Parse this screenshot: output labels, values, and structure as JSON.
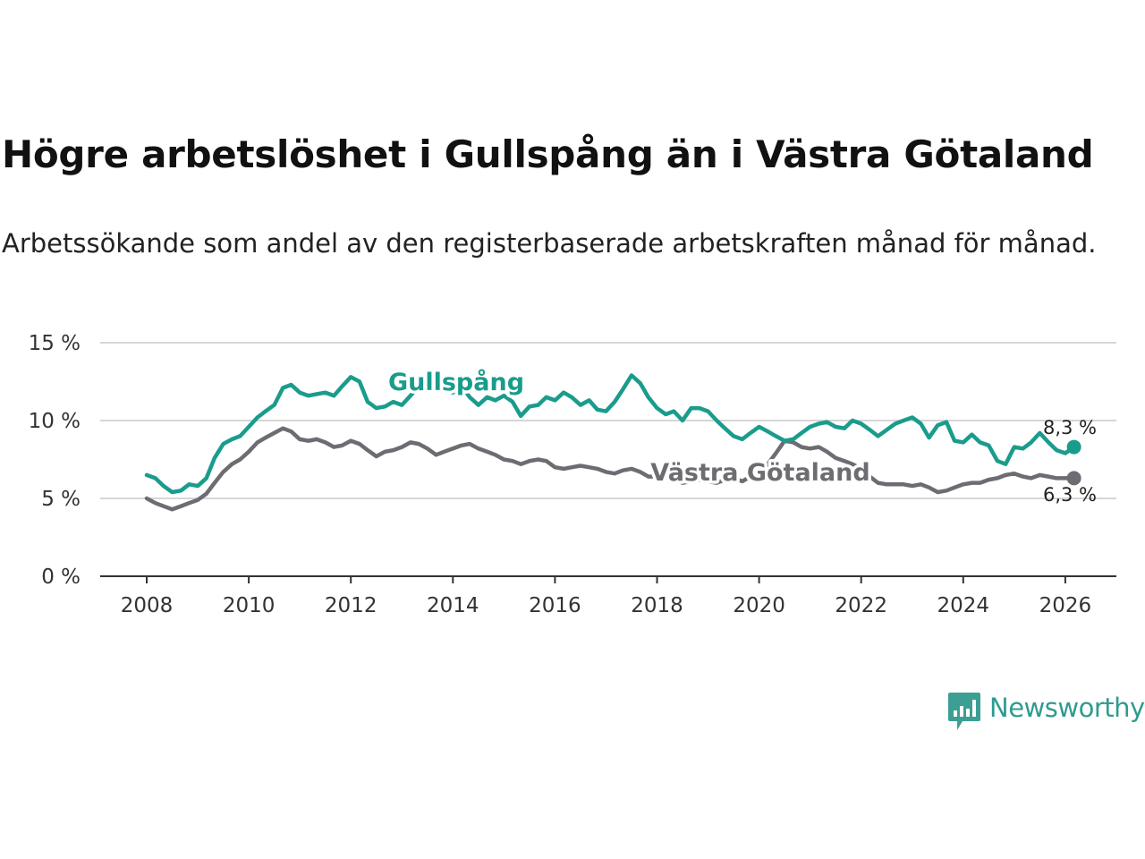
{
  "chart_data": {
    "type": "line",
    "title": "Högre arbetslöshet i Gullspång än i Västra Götaland",
    "subtitle": "Arbetssökande som andel av den registerbaserade arbetskraften månad för månad.",
    "xlabel": "",
    "ylabel": "",
    "xlim": [
      2007.6,
      2027.0
    ],
    "ylim": [
      0,
      15
    ],
    "x_ticks": [
      2008,
      2010,
      2012,
      2014,
      2016,
      2018,
      2020,
      2022,
      2024,
      2026
    ],
    "y_ticks": [
      {
        "value": 0,
        "label": "0 %"
      },
      {
        "value": 5,
        "label": "5 %"
      },
      {
        "value": 10,
        "label": "10 %"
      },
      {
        "value": 15,
        "label": "15 %"
      }
    ],
    "grid": true,
    "series": [
      {
        "name": "Gullspång",
        "label": "Gullspång",
        "color": "#1a9c8c",
        "end_label": "8,3 %",
        "points": [
          [
            2008.0,
            6.5
          ],
          [
            2008.17,
            6.3
          ],
          [
            2008.33,
            5.8
          ],
          [
            2008.5,
            5.4
          ],
          [
            2008.67,
            5.5
          ],
          [
            2008.83,
            5.9
          ],
          [
            2009.0,
            5.8
          ],
          [
            2009.17,
            6.3
          ],
          [
            2009.33,
            7.6
          ],
          [
            2009.5,
            8.5
          ],
          [
            2009.67,
            8.8
          ],
          [
            2009.83,
            9.0
          ],
          [
            2010.0,
            9.6
          ],
          [
            2010.17,
            10.2
          ],
          [
            2010.33,
            10.6
          ],
          [
            2010.5,
            11.0
          ],
          [
            2010.67,
            12.1
          ],
          [
            2010.83,
            12.3
          ],
          [
            2011.0,
            11.8
          ],
          [
            2011.17,
            11.6
          ],
          [
            2011.33,
            11.7
          ],
          [
            2011.5,
            11.8
          ],
          [
            2011.67,
            11.6
          ],
          [
            2011.83,
            12.2
          ],
          [
            2012.0,
            12.8
          ],
          [
            2012.17,
            12.5
          ],
          [
            2012.33,
            11.2
          ],
          [
            2012.5,
            10.8
          ],
          [
            2012.67,
            10.9
          ],
          [
            2012.83,
            11.2
          ],
          [
            2013.0,
            11.0
          ],
          [
            2013.17,
            11.6
          ],
          [
            2013.33,
            12.2
          ],
          [
            2013.5,
            12.0
          ],
          [
            2013.67,
            12.5
          ],
          [
            2013.83,
            12.0
          ],
          [
            2014.0,
            11.8
          ],
          [
            2014.17,
            12.2
          ],
          [
            2014.33,
            11.5
          ],
          [
            2014.5,
            11.0
          ],
          [
            2014.67,
            11.5
          ],
          [
            2014.83,
            11.3
          ],
          [
            2015.0,
            11.6
          ],
          [
            2015.17,
            11.2
          ],
          [
            2015.33,
            10.3
          ],
          [
            2015.5,
            10.9
          ],
          [
            2015.67,
            11.0
          ],
          [
            2015.83,
            11.5
          ],
          [
            2016.0,
            11.3
          ],
          [
            2016.17,
            11.8
          ],
          [
            2016.33,
            11.5
          ],
          [
            2016.5,
            11.0
          ],
          [
            2016.67,
            11.3
          ],
          [
            2016.83,
            10.7
          ],
          [
            2017.0,
            10.6
          ],
          [
            2017.17,
            11.2
          ],
          [
            2017.33,
            12.0
          ],
          [
            2017.5,
            12.9
          ],
          [
            2017.67,
            12.4
          ],
          [
            2017.83,
            11.5
          ],
          [
            2018.0,
            10.8
          ],
          [
            2018.17,
            10.4
          ],
          [
            2018.33,
            10.6
          ],
          [
            2018.5,
            10.0
          ],
          [
            2018.67,
            10.8
          ],
          [
            2018.83,
            10.8
          ],
          [
            2019.0,
            10.6
          ],
          [
            2019.17,
            10.0
          ],
          [
            2019.33,
            9.5
          ],
          [
            2019.5,
            9.0
          ],
          [
            2019.67,
            8.8
          ],
          [
            2019.83,
            9.2
          ],
          [
            2020.0,
            9.6
          ],
          [
            2020.17,
            9.3
          ],
          [
            2020.33,
            9.0
          ],
          [
            2020.5,
            8.7
          ],
          [
            2020.67,
            8.8
          ],
          [
            2020.83,
            9.2
          ],
          [
            2021.0,
            9.6
          ],
          [
            2021.17,
            9.8
          ],
          [
            2021.33,
            9.9
          ],
          [
            2021.5,
            9.6
          ],
          [
            2021.67,
            9.5
          ],
          [
            2021.83,
            10.0
          ],
          [
            2022.0,
            9.8
          ],
          [
            2022.17,
            9.4
          ],
          [
            2022.33,
            9.0
          ],
          [
            2022.5,
            9.4
          ],
          [
            2022.67,
            9.8
          ],
          [
            2022.83,
            10.0
          ],
          [
            2023.0,
            10.2
          ],
          [
            2023.17,
            9.8
          ],
          [
            2023.33,
            8.9
          ],
          [
            2023.5,
            9.7
          ],
          [
            2023.67,
            9.9
          ],
          [
            2023.83,
            8.7
          ],
          [
            2024.0,
            8.6
          ],
          [
            2024.17,
            9.1
          ],
          [
            2024.33,
            8.6
          ],
          [
            2024.5,
            8.4
          ],
          [
            2024.67,
            7.4
          ],
          [
            2024.83,
            7.2
          ],
          [
            2025.0,
            8.3
          ],
          [
            2025.17,
            8.2
          ],
          [
            2025.33,
            8.6
          ],
          [
            2025.5,
            9.2
          ],
          [
            2025.67,
            8.6
          ],
          [
            2025.83,
            8.1
          ],
          [
            2026.0,
            7.9
          ],
          [
            2026.17,
            8.3
          ]
        ]
      },
      {
        "name": "Västra Götaland",
        "label": "Västra Götaland",
        "color": "#6e6c72",
        "end_label": "6,3 %",
        "points": [
          [
            2008.0,
            5.0
          ],
          [
            2008.17,
            4.7
          ],
          [
            2008.33,
            4.5
          ],
          [
            2008.5,
            4.3
          ],
          [
            2008.67,
            4.5
          ],
          [
            2008.83,
            4.7
          ],
          [
            2009.0,
            4.9
          ],
          [
            2009.17,
            5.3
          ],
          [
            2009.33,
            6.0
          ],
          [
            2009.5,
            6.7
          ],
          [
            2009.67,
            7.2
          ],
          [
            2009.83,
            7.5
          ],
          [
            2010.0,
            8.0
          ],
          [
            2010.17,
            8.6
          ],
          [
            2010.33,
            8.9
          ],
          [
            2010.5,
            9.2
          ],
          [
            2010.67,
            9.5
          ],
          [
            2010.83,
            9.3
          ],
          [
            2011.0,
            8.8
          ],
          [
            2011.17,
            8.7
          ],
          [
            2011.33,
            8.8
          ],
          [
            2011.5,
            8.6
          ],
          [
            2011.67,
            8.3
          ],
          [
            2011.83,
            8.4
          ],
          [
            2012.0,
            8.7
          ],
          [
            2012.17,
            8.5
          ],
          [
            2012.33,
            8.1
          ],
          [
            2012.5,
            7.7
          ],
          [
            2012.67,
            8.0
          ],
          [
            2012.83,
            8.1
          ],
          [
            2013.0,
            8.3
          ],
          [
            2013.17,
            8.6
          ],
          [
            2013.33,
            8.5
          ],
          [
            2013.5,
            8.2
          ],
          [
            2013.67,
            7.8
          ],
          [
            2013.83,
            8.0
          ],
          [
            2014.0,
            8.2
          ],
          [
            2014.17,
            8.4
          ],
          [
            2014.33,
            8.5
          ],
          [
            2014.5,
            8.2
          ],
          [
            2014.67,
            8.0
          ],
          [
            2014.83,
            7.8
          ],
          [
            2015.0,
            7.5
          ],
          [
            2015.17,
            7.4
          ],
          [
            2015.33,
            7.2
          ],
          [
            2015.5,
            7.4
          ],
          [
            2015.67,
            7.5
          ],
          [
            2015.83,
            7.4
          ],
          [
            2016.0,
            7.0
          ],
          [
            2016.17,
            6.9
          ],
          [
            2016.33,
            7.0
          ],
          [
            2016.5,
            7.1
          ],
          [
            2016.67,
            7.0
          ],
          [
            2016.83,
            6.9
          ],
          [
            2017.0,
            6.7
          ],
          [
            2017.17,
            6.6
          ],
          [
            2017.33,
            6.8
          ],
          [
            2017.5,
            6.9
          ],
          [
            2017.67,
            6.7
          ],
          [
            2017.83,
            6.4
          ],
          [
            2018.0,
            6.4
          ],
          [
            2018.17,
            6.5
          ],
          [
            2018.33,
            6.3
          ],
          [
            2018.5,
            6.0
          ],
          [
            2018.67,
            6.1
          ],
          [
            2018.83,
            6.2
          ],
          [
            2019.0,
            6.1
          ],
          [
            2019.17,
            6.0
          ],
          [
            2019.33,
            6.2
          ],
          [
            2019.5,
            6.3
          ],
          [
            2019.67,
            6.1
          ],
          [
            2019.83,
            6.4
          ],
          [
            2020.0,
            6.7
          ],
          [
            2020.17,
            7.2
          ],
          [
            2020.33,
            7.9
          ],
          [
            2020.5,
            8.7
          ],
          [
            2020.67,
            8.6
          ],
          [
            2020.83,
            8.3
          ],
          [
            2021.0,
            8.2
          ],
          [
            2021.17,
            8.3
          ],
          [
            2021.33,
            8.0
          ],
          [
            2021.5,
            7.6
          ],
          [
            2021.67,
            7.4
          ],
          [
            2021.83,
            7.2
          ],
          [
            2022.0,
            6.9
          ],
          [
            2022.17,
            6.4
          ],
          [
            2022.33,
            6.0
          ],
          [
            2022.5,
            5.9
          ],
          [
            2022.67,
            5.9
          ],
          [
            2022.83,
            5.9
          ],
          [
            2023.0,
            5.8
          ],
          [
            2023.17,
            5.9
          ],
          [
            2023.33,
            5.7
          ],
          [
            2023.5,
            5.4
          ],
          [
            2023.67,
            5.5
          ],
          [
            2023.83,
            5.7
          ],
          [
            2024.0,
            5.9
          ],
          [
            2024.17,
            6.0
          ],
          [
            2024.33,
            6.0
          ],
          [
            2024.5,
            6.2
          ],
          [
            2024.67,
            6.3
          ],
          [
            2024.83,
            6.5
          ],
          [
            2025.0,
            6.6
          ],
          [
            2025.17,
            6.4
          ],
          [
            2025.33,
            6.3
          ],
          [
            2025.5,
            6.5
          ],
          [
            2025.67,
            6.4
          ],
          [
            2025.83,
            6.3
          ],
          [
            2026.0,
            6.3
          ],
          [
            2026.17,
            6.3
          ]
        ]
      }
    ]
  },
  "brand": {
    "name": "Newsworthy",
    "color": "#2f9b8f"
  }
}
